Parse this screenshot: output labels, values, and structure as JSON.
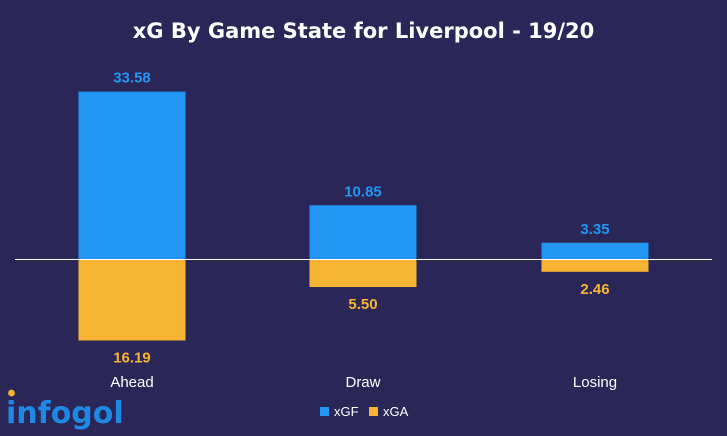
{
  "chart_data": {
    "type": "bar",
    "title": "xG By Game State for Liverpool - 19/20",
    "categories": [
      "Ahead",
      "Draw",
      "Losing"
    ],
    "series": [
      {
        "name": "xGF",
        "values": [
          33.58,
          10.85,
          3.35
        ],
        "labels": [
          "33.58",
          "10.85",
          "3.35"
        ],
        "color": "#2196f3",
        "direction": "up"
      },
      {
        "name": "xGA",
        "values": [
          16.19,
          5.5,
          2.46
        ],
        "labels": [
          "16.19",
          "5.50",
          "2.46"
        ],
        "color": "#f7b432",
        "direction": "down"
      }
    ],
    "ylim": [
      -17,
      34
    ],
    "grid": false,
    "legend_position": "bottom-center",
    "baseline_color": "#ffffff"
  },
  "branding": {
    "logo_text": "infogol",
    "logo_color": "#1e88e5",
    "logo_dot_color": "#f7b432"
  },
  "colors": {
    "background": "#2a2657"
  }
}
